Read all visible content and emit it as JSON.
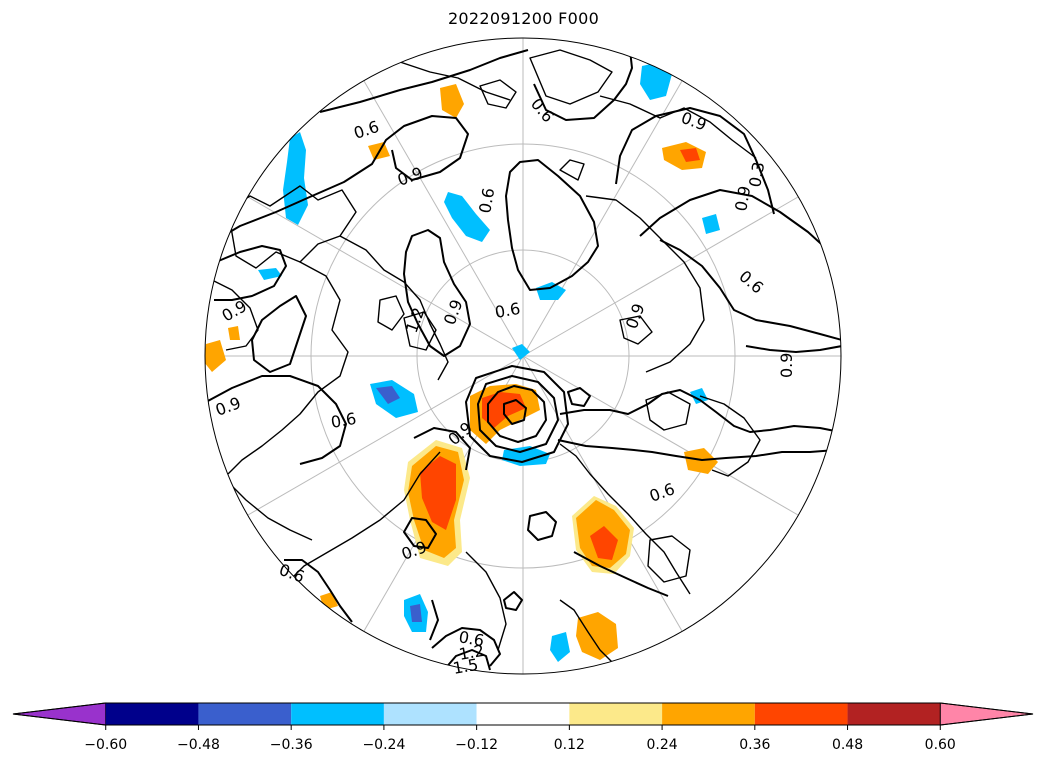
{
  "title": "2022091200 F000",
  "colorbar": {
    "levels": [
      -0.6,
      -0.48,
      -0.36,
      -0.24,
      -0.12,
      0.12,
      0.24,
      0.36,
      0.48,
      0.6
    ],
    "tick_labels": [
      "−0.60",
      "−0.48",
      "−0.36",
      "−0.24",
      "−0.12",
      "0.12",
      "0.24",
      "0.36",
      "0.48",
      "0.60"
    ],
    "under_color": "#9932cc",
    "over_color": "#ff85a8",
    "colors": [
      "#00008b",
      "#3a5fcd",
      "#00bfff",
      "#aee2ff",
      "#ffffff",
      "#fce98a",
      "#ffa500",
      "#ff4500",
      "#b22222"
    ],
    "extend": "both"
  },
  "contour_labels": [
    "0.6",
    "0.9",
    "0.9",
    "0.6",
    "0.9",
    "0.3",
    "0.9",
    "0.6",
    "0.9",
    "1.2",
    "0.6",
    "0.9",
    "0.9",
    "0.6",
    "0.9",
    "0.6",
    "0.9",
    "0.6",
    "0.6",
    "0.9",
    "0.6",
    "1.2",
    "1.5"
  ],
  "colors": {
    "contour": "#000000",
    "coastline": "#000000",
    "graticule": "#bbbbbb",
    "cyan": "#00bfff",
    "orange": "#ffa500",
    "red": "#ff4500",
    "yellow": "#fce98a",
    "royal": "#3a5fcd"
  }
}
